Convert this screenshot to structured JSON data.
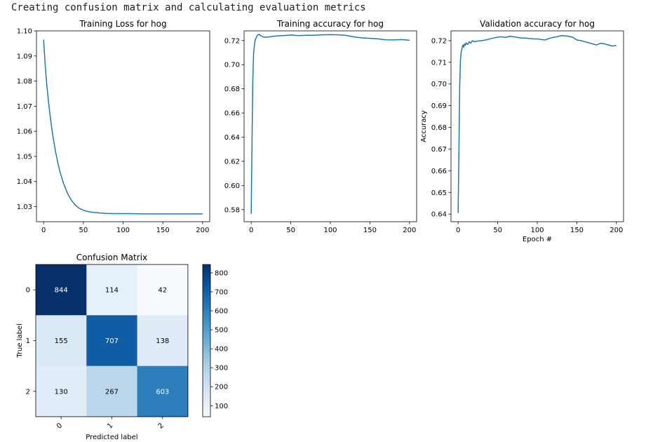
{
  "console": {
    "text": "Creating confusion matrix and calculating evaluation metrics"
  },
  "colors": {
    "line": "#1f77b4",
    "axis": "#000000",
    "cmap_low": "#f7fbff",
    "cmap_high": "#08306b"
  },
  "chart_data": [
    {
      "type": "line",
      "title": "Training Loss for hog",
      "xlabel": "",
      "ylabel": "",
      "xlim": [
        -9,
        209
      ],
      "ylim": [
        1.024,
        1.1
      ],
      "xticks": [
        0,
        50,
        100,
        150,
        200
      ],
      "yticks": [
        1.03,
        1.04,
        1.05,
        1.06,
        1.07,
        1.08,
        1.09,
        1.1
      ],
      "ytick_labels": [
        "1.03",
        "1.04",
        "1.05",
        "1.06",
        "1.07",
        "1.08",
        "1.09",
        "1.10"
      ],
      "series": [
        {
          "x": [
            0,
            1,
            2,
            4,
            6,
            8,
            10,
            12,
            15,
            18,
            21,
            25,
            30,
            35,
            40,
            45,
            50,
            55,
            60,
            70,
            80,
            90,
            100,
            110,
            125,
            150,
            175,
            200
          ],
          "values": [
            1.0965,
            1.0912,
            1.0862,
            1.0784,
            1.0722,
            1.0667,
            1.0618,
            1.0575,
            1.0519,
            1.0473,
            1.0434,
            1.0393,
            1.0353,
            1.0325,
            1.0306,
            1.0293,
            1.0286,
            1.0281,
            1.0278,
            1.0275,
            1.0273,
            1.0272,
            1.0272,
            1.0272,
            1.0271,
            1.0271,
            1.0271,
            1.0271
          ]
        }
      ]
    },
    {
      "type": "line",
      "title": "Training accuracy for hog",
      "xlabel": "",
      "ylabel": "",
      "xlim": [
        -9,
        209
      ],
      "ylim": [
        0.57,
        0.728
      ],
      "xticks": [
        0,
        50,
        100,
        150,
        200
      ],
      "yticks": [
        0.58,
        0.6,
        0.62,
        0.64,
        0.66,
        0.68,
        0.7,
        0.72
      ],
      "ytick_labels": [
        "0.58",
        "0.60",
        "0.62",
        "0.64",
        "0.66",
        "0.68",
        "0.70",
        "0.72"
      ],
      "series": [
        {
          "x": [
            0,
            1,
            2,
            3,
            4,
            5,
            6,
            8,
            10,
            12,
            15,
            20,
            25,
            30,
            40,
            50,
            60,
            70,
            80,
            90,
            100,
            110,
            120,
            130,
            140,
            150,
            160,
            170,
            180,
            190,
            200
          ],
          "values": [
            0.5765,
            0.633,
            0.687,
            0.709,
            0.716,
            0.72,
            0.722,
            0.7245,
            0.7252,
            0.724,
            0.723,
            0.7228,
            0.7232,
            0.7237,
            0.7241,
            0.7246,
            0.7241,
            0.7244,
            0.7244,
            0.7247,
            0.7249,
            0.7247,
            0.7242,
            0.723,
            0.7222,
            0.7218,
            0.7214,
            0.7206,
            0.7205,
            0.7208,
            0.7202
          ]
        }
      ]
    },
    {
      "type": "line",
      "title": "Validation accuracy for hog",
      "xlabel": "Epoch #",
      "ylabel": "Accuracy",
      "xlim": [
        -9,
        209
      ],
      "ylim": [
        0.6365,
        0.7245
      ],
      "xticks": [
        0,
        50,
        100,
        150,
        200
      ],
      "yticks": [
        0.64,
        0.65,
        0.66,
        0.67,
        0.68,
        0.69,
        0.7,
        0.71,
        0.72
      ],
      "ytick_labels": [
        "0.64",
        "0.65",
        "0.66",
        "0.67",
        "0.68",
        "0.69",
        "0.70",
        "0.71",
        "0.72"
      ],
      "series": [
        {
          "x": [
            0,
            1,
            2,
            3,
            4,
            5,
            6,
            7,
            8,
            9,
            10,
            12,
            14,
            16,
            18,
            20,
            25,
            30,
            35,
            40,
            45,
            50,
            55,
            60,
            65,
            70,
            75,
            80,
            85,
            90,
            95,
            100,
            105,
            110,
            115,
            120,
            125,
            130,
            135,
            140,
            145,
            150,
            155,
            160,
            165,
            170,
            175,
            180,
            185,
            190,
            195,
            200
          ],
          "values": [
            0.6405,
            0.668,
            0.699,
            0.7115,
            0.715,
            0.7165,
            0.718,
            0.717,
            0.7185,
            0.7178,
            0.719,
            0.7182,
            0.7195,
            0.7188,
            0.72,
            0.7195,
            0.7198,
            0.72,
            0.7203,
            0.7208,
            0.7212,
            0.7216,
            0.7218,
            0.7215,
            0.722,
            0.7218,
            0.7215,
            0.7212,
            0.7212,
            0.721,
            0.7208,
            0.7208,
            0.7205,
            0.7203,
            0.721,
            0.7215,
            0.7218,
            0.7223,
            0.7222,
            0.722,
            0.7215,
            0.7203,
            0.72,
            0.7195,
            0.719,
            0.7185,
            0.718,
            0.7188,
            0.7185,
            0.718,
            0.7175,
            0.7178
          ]
        }
      ]
    },
    {
      "type": "heatmap",
      "title": "Confusion Matrix",
      "xlabel": "Predicted label",
      "ylabel": "True label",
      "x_tick_labels": [
        "0",
        "1",
        "2"
      ],
      "y_tick_labels": [
        "0",
        "1",
        "2"
      ],
      "values": [
        [
          844,
          114,
          42
        ],
        [
          155,
          707,
          138
        ],
        [
          130,
          267,
          603
        ]
      ],
      "colorbar": {
        "min": 42,
        "max": 844,
        "ticks": [
          100,
          200,
          300,
          400,
          500,
          600,
          700,
          800
        ],
        "labels": [
          "100",
          "200",
          "300",
          "400",
          "500",
          "600",
          "700",
          "800"
        ]
      },
      "colormap": "Blues"
    }
  ]
}
